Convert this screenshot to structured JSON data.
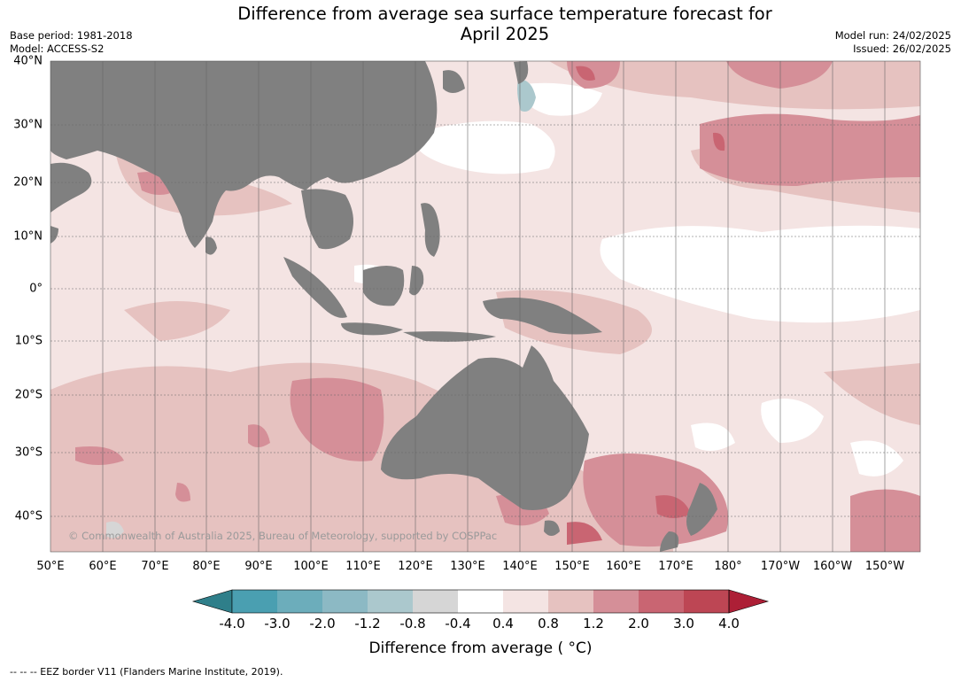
{
  "title_line1": "Difference from average sea surface temperature forecast for",
  "title_line2": "April 2025",
  "meta_left": [
    "Base period: 1981-2018",
    "Model: ACCESS-S2"
  ],
  "meta_right": [
    "Model run: 24/02/2025",
    "Issued: 26/02/2025"
  ],
  "lat_ticks": [
    "40°N",
    "30°N",
    "20°N",
    "10°N",
    "0°",
    "10°S",
    "20°S",
    "30°S",
    "40°S"
  ],
  "lon_ticks": [
    "50°E",
    "60°E",
    "70°E",
    "80°E",
    "90°E",
    "100°E",
    "110°E",
    "120°E",
    "130°E",
    "140°E",
    "150°E",
    "160°E",
    "170°E",
    "180°",
    "170°W",
    "160°W",
    "150°W"
  ],
  "colorbar": {
    "labels": [
      "-4.0",
      "-3.0",
      "-2.0",
      "-1.2",
      "-0.8",
      "-0.4",
      "0.4",
      "0.8",
      "1.2",
      "2.0",
      "3.0",
      "4.0"
    ],
    "colors": [
      "#2f7f8a",
      "#4a9fb1",
      "#6cadbb",
      "#8cb9c4",
      "#abc8cd",
      "#d6d6d6",
      "#ffffff",
      "#f4e4e3",
      "#e6c2c0",
      "#d58f98",
      "#c96572",
      "#bd4654",
      "#ad1f36"
    ],
    "title": "Difference from average ( °C)"
  },
  "land_color": "#808080",
  "copyright": "© Commonwealth of Australia 2025, Bureau of Meteorology, supported by COSPPac",
  "footnote": "--  --  -- EEZ border V11 (Flanders Marine Institute, 2019)."
}
